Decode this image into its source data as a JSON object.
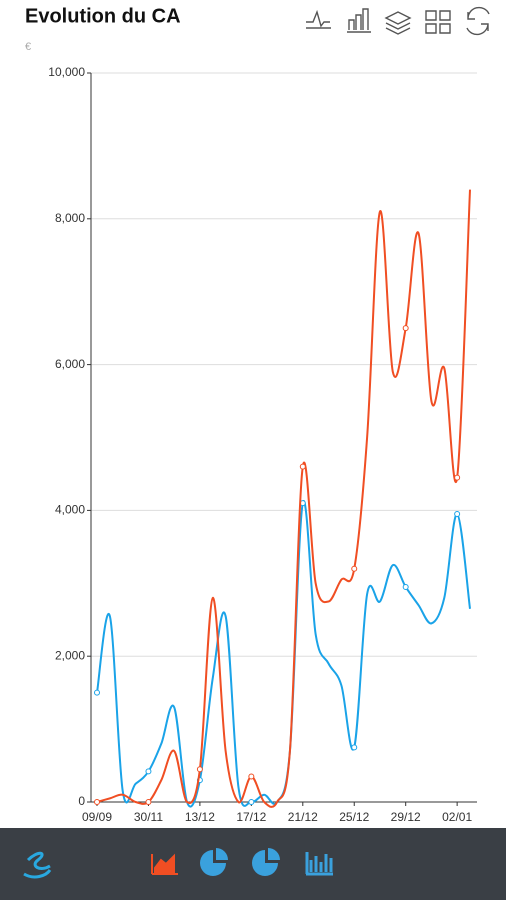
{
  "chart_data": {
    "type": "line",
    "title": "Evolution du CA",
    "y_unit": "€",
    "categories": [
      "09/09",
      null,
      null,
      null,
      "30/11",
      null,
      null,
      null,
      "13/12",
      null,
      null,
      null,
      "17/12",
      null,
      null,
      null,
      "21/12",
      null,
      null,
      null,
      "25/12",
      null,
      null,
      null,
      "29/12",
      null,
      null,
      null,
      "02/01",
      null
    ],
    "series": [
      {
        "color": "#1aa3e8",
        "values": [
          1500,
          2550,
          150,
          250,
          420,
          800,
          1300,
          0,
          300,
          1700,
          2550,
          200,
          0,
          100,
          0,
          700,
          4100,
          2300,
          1900,
          1600,
          750,
          2850,
          2750,
          3250,
          2950,
          2700,
          2450,
          2800,
          3950,
          2650
        ]
      },
      {
        "color": "#f04e23",
        "values": [
          0,
          50,
          100,
          0,
          0,
          300,
          700,
          0,
          450,
          2800,
          700,
          0,
          350,
          0,
          0,
          700,
          4600,
          3000,
          2750,
          3050,
          3200,
          5000,
          8100,
          5900,
          6500,
          7800,
          5500,
          5950,
          4450,
          8400
        ]
      }
    ],
    "ylim": [
      0,
      10000
    ],
    "yticks": [
      0,
      {
        "value": 2000,
        "label": "2,000"
      },
      {
        "value": 4000,
        "label": "4,000"
      },
      {
        "value": 6000,
        "label": "6,000"
      },
      {
        "value": 8000,
        "label": "8,000"
      },
      {
        "value": 10000,
        "label": "10,000"
      }
    ],
    "grid": true,
    "smooth": true
  }
}
